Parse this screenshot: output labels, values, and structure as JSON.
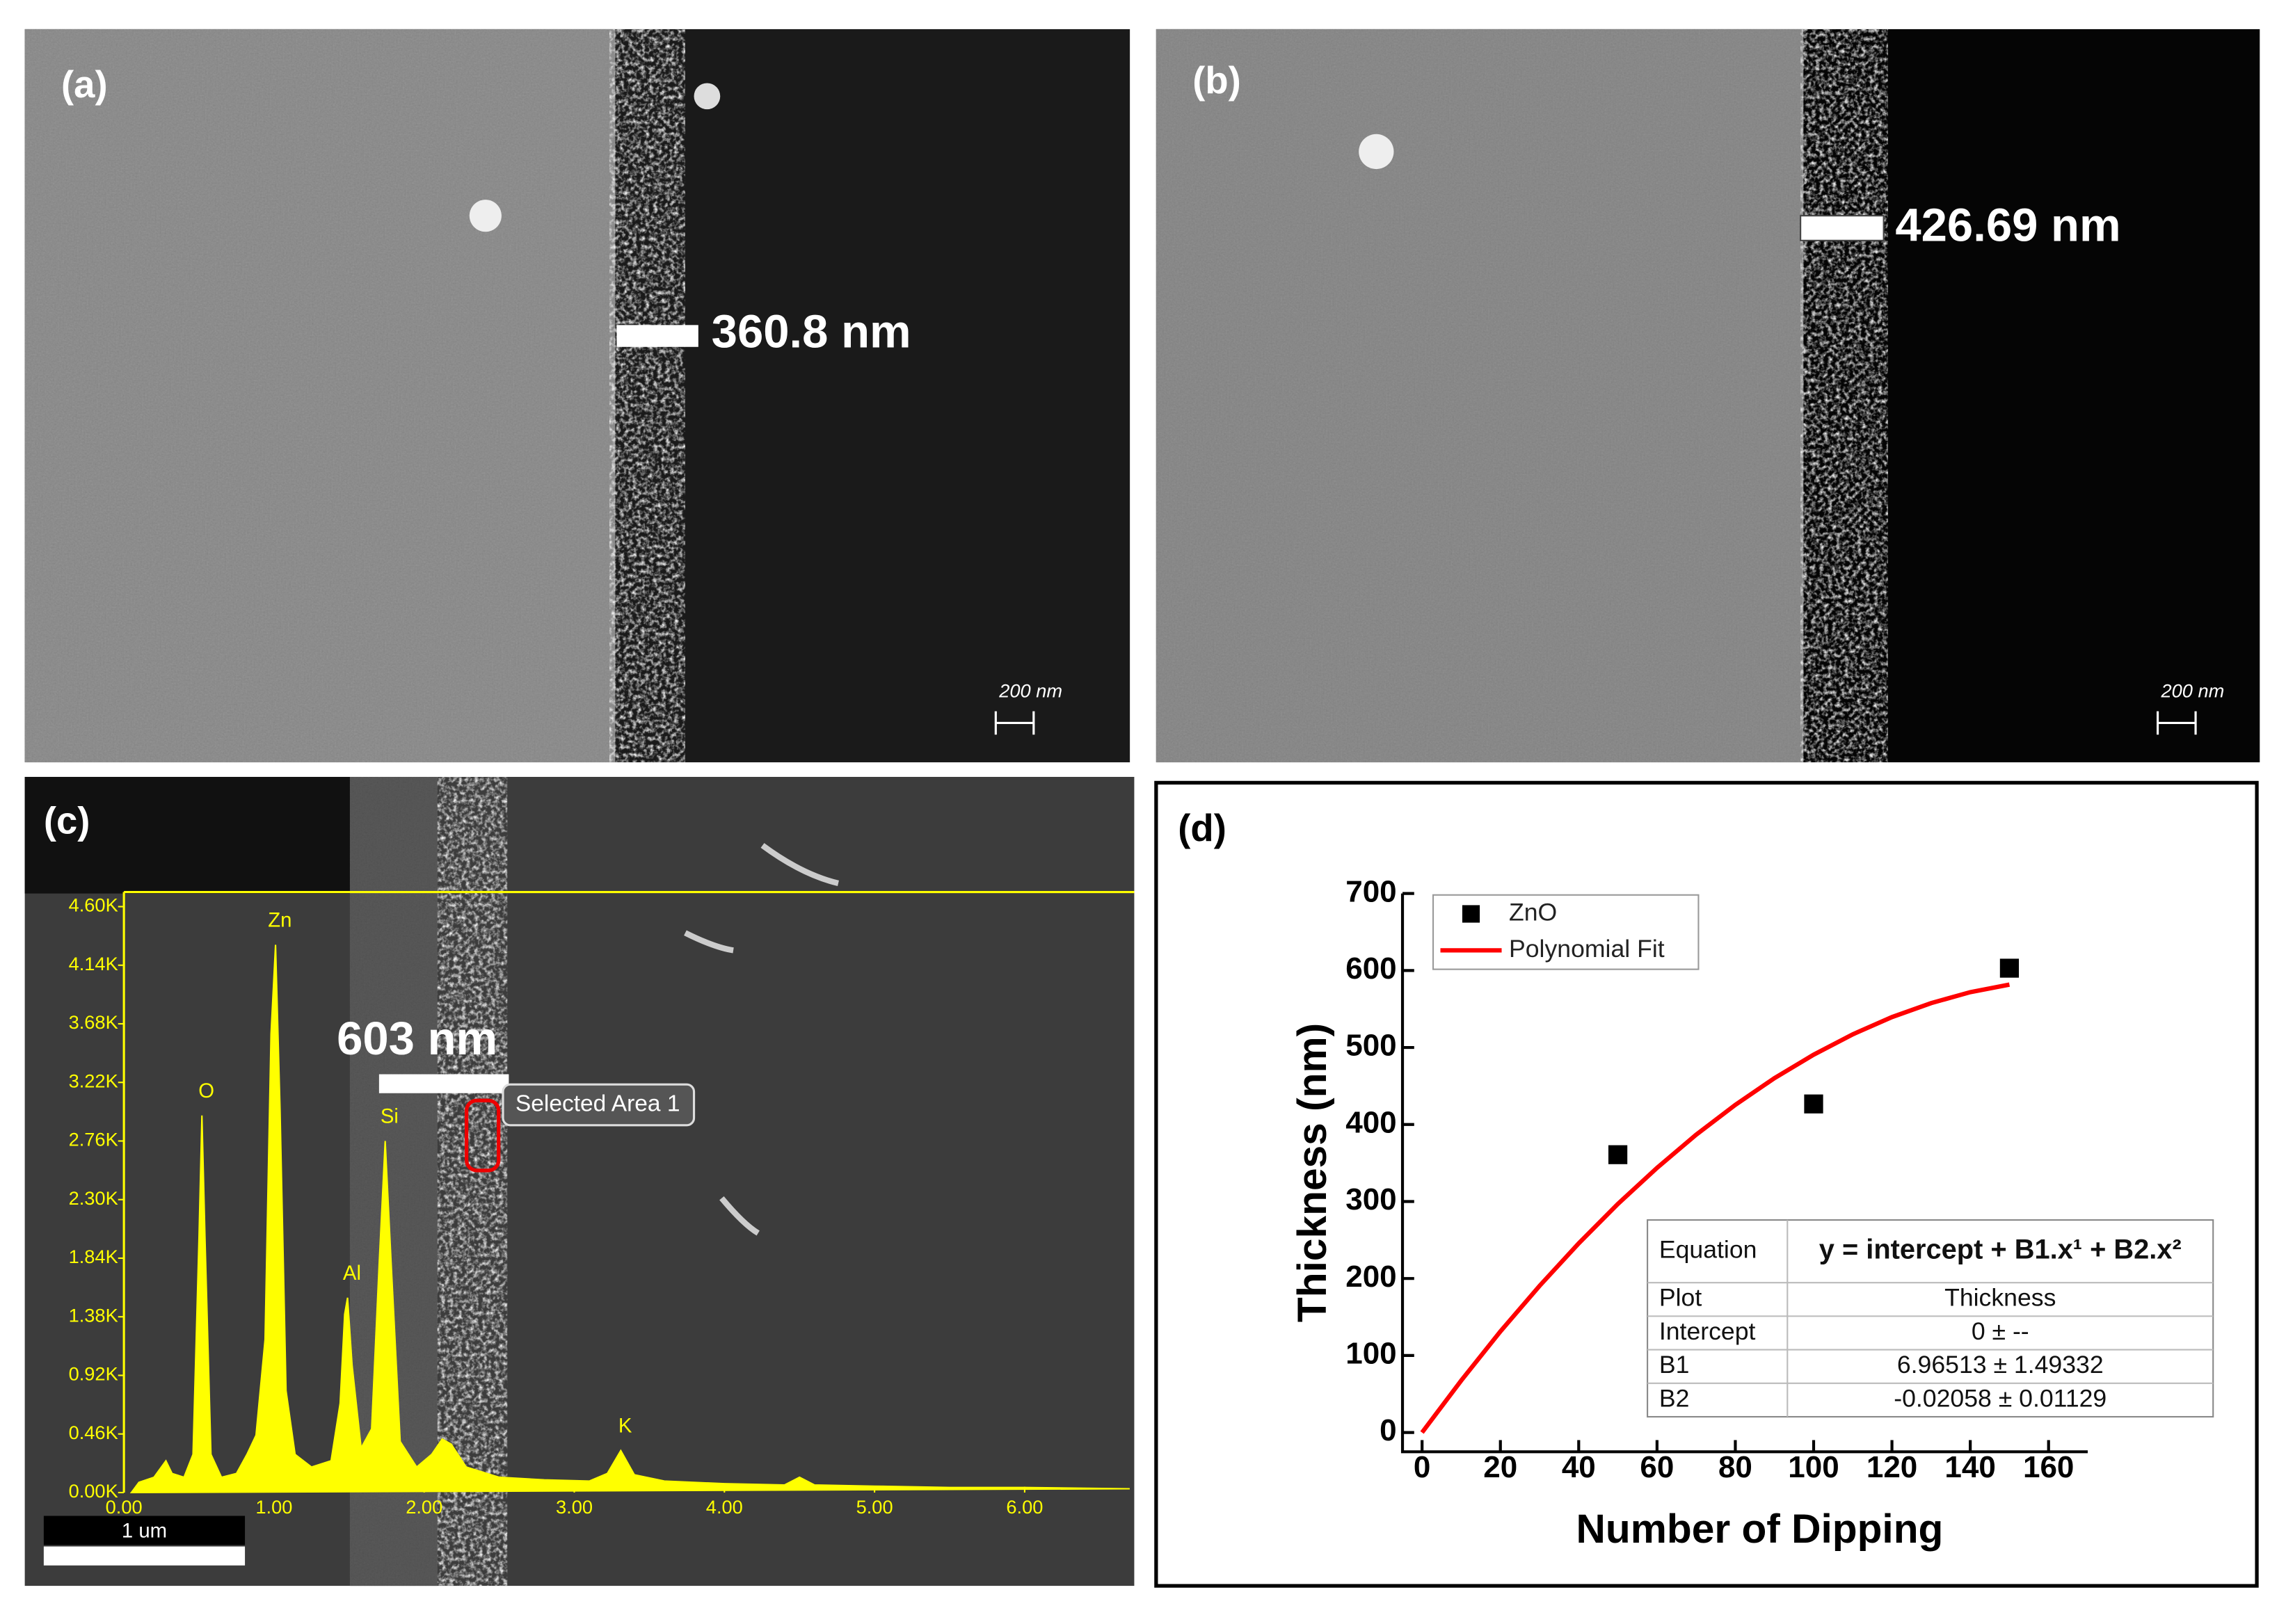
{
  "panel_a": {
    "label": "(a)",
    "measurement": "360.8 nm",
    "scale_bar": "200 nm"
  },
  "panel_b": {
    "label": "(b)",
    "measurement": "426.69 nm",
    "scale_bar": "200 nm"
  },
  "panel_c": {
    "label": "(c)",
    "measurement": "603 nm",
    "selection": "Selected Area 1",
    "scale_bar": "1 um"
  },
  "panel_d": {
    "label": "(d)"
  },
  "chart_data": [
    {
      "type": "area",
      "color": "#ffff00",
      "x": [
        0.05,
        0.1,
        0.2,
        0.25,
        0.28,
        0.32,
        0.4,
        0.46,
        0.5,
        0.52,
        0.54,
        0.58,
        0.65,
        0.75,
        0.82,
        0.88,
        0.94,
        0.98,
        1.01,
        1.04,
        1.08,
        1.14,
        1.25,
        1.38,
        1.44,
        1.47,
        1.49,
        1.52,
        1.58,
        1.65,
        1.7,
        1.74,
        1.78,
        1.84,
        1.95,
        2.05,
        2.12,
        2.18,
        2.28,
        2.5,
        2.8,
        3.1,
        3.22,
        3.31,
        3.4,
        3.6,
        4.0,
        4.4,
        4.5,
        4.6,
        5.0,
        5.5,
        6.0,
        6.7
      ],
      "values": [
        0,
        80,
        120,
        200,
        250,
        150,
        120,
        300,
        2000,
        2960,
        2000,
        300,
        120,
        150,
        300,
        450,
        1200,
        3600,
        4300,
        3000,
        800,
        300,
        200,
        250,
        700,
        1400,
        1530,
        1000,
        350,
        500,
        1800,
        2760,
        1800,
        400,
        200,
        300,
        420,
        380,
        200,
        120,
        100,
        90,
        150,
        330,
        140,
        90,
        70,
        60,
        120,
        60,
        50,
        40,
        40,
        30
      ],
      "xlim": [
        0,
        6.73
      ],
      "xticks": [
        {
          "value": 0,
          "label": "0.00"
        },
        {
          "value": 1,
          "label": "1.00"
        },
        {
          "value": 2,
          "label": "2.00"
        },
        {
          "value": 3,
          "label": "3.00"
        },
        {
          "value": 4,
          "label": "4.00"
        },
        {
          "value": 5,
          "label": "5.00"
        },
        {
          "value": 6,
          "label": "6.00"
        }
      ],
      "ylim": [
        0,
        4600
      ],
      "yticks": [
        {
          "value": 0,
          "label": "0.00K"
        },
        {
          "value": 460,
          "label": "0.46K"
        },
        {
          "value": 920,
          "label": "0.92K"
        },
        {
          "value": 1380,
          "label": "1.38K"
        },
        {
          "value": 1840,
          "label": "1.84K"
        },
        {
          "value": 2300,
          "label": "2.30K"
        },
        {
          "value": 2760,
          "label": "2.76K"
        },
        {
          "value": 3220,
          "label": "3.22K"
        },
        {
          "value": 3680,
          "label": "3.68K"
        },
        {
          "value": 4140,
          "label": "4.14K"
        },
        {
          "value": 4600,
          "label": "4.60K"
        }
      ],
      "annotations": [
        {
          "text": "O",
          "x": 0.52
        },
        {
          "text": "Zn",
          "x": 1.01
        },
        {
          "text": "Al",
          "x": 1.49
        },
        {
          "text": "Si",
          "x": 1.74
        },
        {
          "text": "K",
          "x": 3.31
        }
      ]
    },
    {
      "type": "scatter",
      "x_label": "Number of Dipping",
      "y_label": "Thickness (nm)",
      "xlim": [
        -5,
        170
      ],
      "xticks": [
        0,
        20,
        40,
        60,
        80,
        100,
        120,
        140,
        160
      ],
      "ylim": [
        -25,
        700
      ],
      "yticks": [
        0,
        100,
        200,
        300,
        400,
        500,
        600,
        700
      ],
      "legend": "upper left",
      "series": [
        {
          "name": "ZnO",
          "color": "#000000",
          "marker": "square",
          "x": [
            50,
            100,
            150
          ],
          "values": [
            360.8,
            426.69,
            603
          ]
        },
        {
          "name": "Polynomial Fit",
          "color": "#ff0000",
          "marker": "line",
          "x": [
            0,
            10,
            20,
            30,
            40,
            50,
            60,
            70,
            80,
            90,
            100,
            110,
            120,
            130,
            140,
            150
          ],
          "values": [
            0,
            67.6,
            131.1,
            190.4,
            245.7,
            296.8,
            343.8,
            386.7,
            425.5,
            460.2,
            490.7,
            517.1,
            539.5,
            557.7,
            571.8,
            581.7
          ]
        }
      ],
      "table": {
        "rows": [
          [
            "Equation",
            "y =  intercept + B1.x¹ + B2.x²"
          ],
          [
            "Plot",
            "Thickness"
          ],
          [
            "Intercept",
            "0 ± --"
          ],
          [
            "B1",
            "6.96513 ± 1.49332"
          ],
          [
            "B2",
            "-0.02058 ± 0.01129"
          ]
        ]
      }
    }
  ]
}
